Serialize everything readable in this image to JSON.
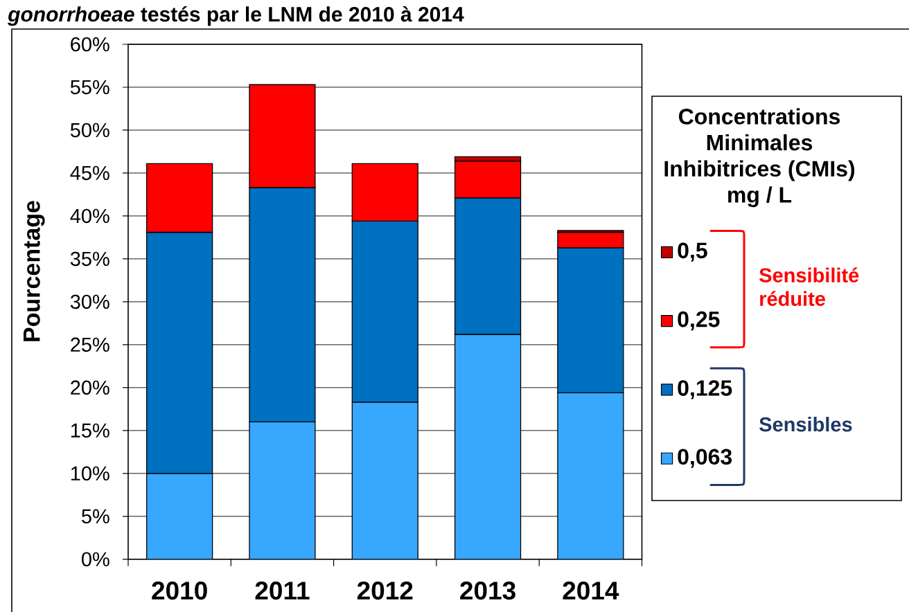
{
  "chart_data": {
    "type": "bar",
    "title": "*gonorrhoeae* testés par le LNM de 2010 à 2014",
    "ylabel": "Pourcentage",
    "legend_title": "Concentrations Minimales Inhibitrices (CMIs) mg / L",
    "categories": [
      "2010",
      "2011",
      "2012",
      "2013",
      "2014"
    ],
    "stacked": true,
    "series": [
      {
        "name": "0,063",
        "color": "#38a8ff",
        "values": [
          10.0,
          16.0,
          18.3,
          26.2,
          19.4
        ]
      },
      {
        "name": "0,125",
        "color": "#0070c0",
        "values": [
          28.1,
          27.3,
          21.1,
          15.9,
          16.9
        ]
      },
      {
        "name": "0,25",
        "color": "#ff0000",
        "values": [
          8.0,
          12.0,
          6.7,
          4.3,
          1.8
        ]
      },
      {
        "name": "0,5",
        "color": "#c00000",
        "values": [
          null,
          null,
          null,
          0.5,
          0.2
        ]
      }
    ],
    "ylim": [
      0,
      60
    ],
    "yticks": [
      {
        "value": 0,
        "label": "0%"
      },
      {
        "value": 5,
        "label": "5%"
      },
      {
        "value": 10,
        "label": "10%"
      },
      {
        "value": 15,
        "label": "15%"
      },
      {
        "value": 20,
        "label": "20%"
      },
      {
        "value": 25,
        "label": "25%"
      },
      {
        "value": 30,
        "label": "30%"
      },
      {
        "value": 35,
        "label": "35%"
      },
      {
        "value": 40,
        "label": "40%"
      },
      {
        "value": 45,
        "label": "45%"
      },
      {
        "value": 50,
        "label": "50%"
      },
      {
        "value": 55,
        "label": "55%"
      },
      {
        "value": 60,
        "label": "60%"
      }
    ],
    "grid": "y",
    "legend": "right",
    "annotations": [
      "Sensibilité réduite",
      "Sensibles"
    ]
  }
}
